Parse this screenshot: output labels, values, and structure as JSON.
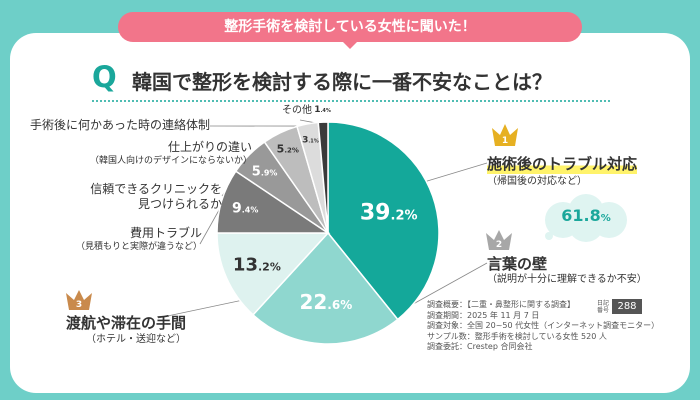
{
  "banner": "整形手術を検討している女性に聞いた！",
  "question": {
    "letter": "Q",
    "text": "韓国で整形を検討する際に一番不安なことは？"
  },
  "colors": {
    "background": "#6ecfc8",
    "accent": "#1aa79b",
    "banner": "#f2758a",
    "gold": "#e6b022",
    "silver": "#a7a7a7",
    "bronze": "#c98a4c"
  },
  "chart_data": {
    "type": "pie",
    "title": "韓国で整形を検討する際に一番不安なことは？",
    "unit": "%",
    "slices": [
      {
        "label": "施術後のトラブル対応",
        "sub": "（帰国後の対応など）",
        "value": 39.2,
        "value_int": "39",
        "value_dec": ".2",
        "color": "#14a89a"
      },
      {
        "label": "言葉の壁",
        "sub": "（説明が十分に理解できるか不安）",
        "value": 22.6,
        "value_int": "22",
        "value_dec": ".6",
        "color": "#8fd7cf"
      },
      {
        "label": "渡航や滞在の手間",
        "sub": "（ホテル・送迎など）",
        "value": 13.2,
        "value_int": "13",
        "value_dec": ".2",
        "color": "#def2ef"
      },
      {
        "label": "費用トラブル",
        "sub": "（見積もりと実際が違うなど）",
        "value": 9.4,
        "value_int": "9",
        "value_dec": ".4",
        "color": "#7a7a7a"
      },
      {
        "label": "信頼できるクリニックを",
        "sub": "見つけられるか",
        "value": 5.9,
        "value_int": "5",
        "value_dec": ".9",
        "color": "#999999"
      },
      {
        "label": "仕上がりの違い",
        "sub": "（韓国人向けのデザインにならないか）",
        "value": 5.2,
        "value_int": "5",
        "value_dec": ".2",
        "color": "#bdbdbd"
      },
      {
        "label": "手術後に何かあった時の連絡体制",
        "sub": "",
        "value": 3.1,
        "value_int": "3",
        "value_dec": ".1",
        "color": "#dcdcdc"
      },
      {
        "label": "その他",
        "sub": "",
        "value": 1.4,
        "value_int": "1",
        "value_dec": ".4",
        "color": "#3a3a3a"
      }
    ]
  },
  "ranks": [
    {
      "num": "1",
      "title": "施術後のトラブル対応",
      "sub": "（帰国後の対応など）"
    },
    {
      "num": "2",
      "title": "言葉の壁",
      "sub": "（説明が十分に理解できるか不安）"
    },
    {
      "num": "3",
      "title": "渡航や滞在の手間",
      "sub": "（ホテル・送迎など）"
    }
  ],
  "combined": {
    "int": "61",
    "dec": ".8",
    "unit": "%"
  },
  "survey": {
    "lines": [
      "調査概要：【二重・鼻整形に関する調査】",
      "調査期間：2025 年 11 月 7 日",
      "調査対象：全国 20~50 代女性（インターネット調査モニター）",
      "サンプル数：整形手術を検討している女性 520 人",
      "調査委託：Crestep 合同会社"
    ],
    "tag": "日記番号",
    "page_number": "288"
  }
}
